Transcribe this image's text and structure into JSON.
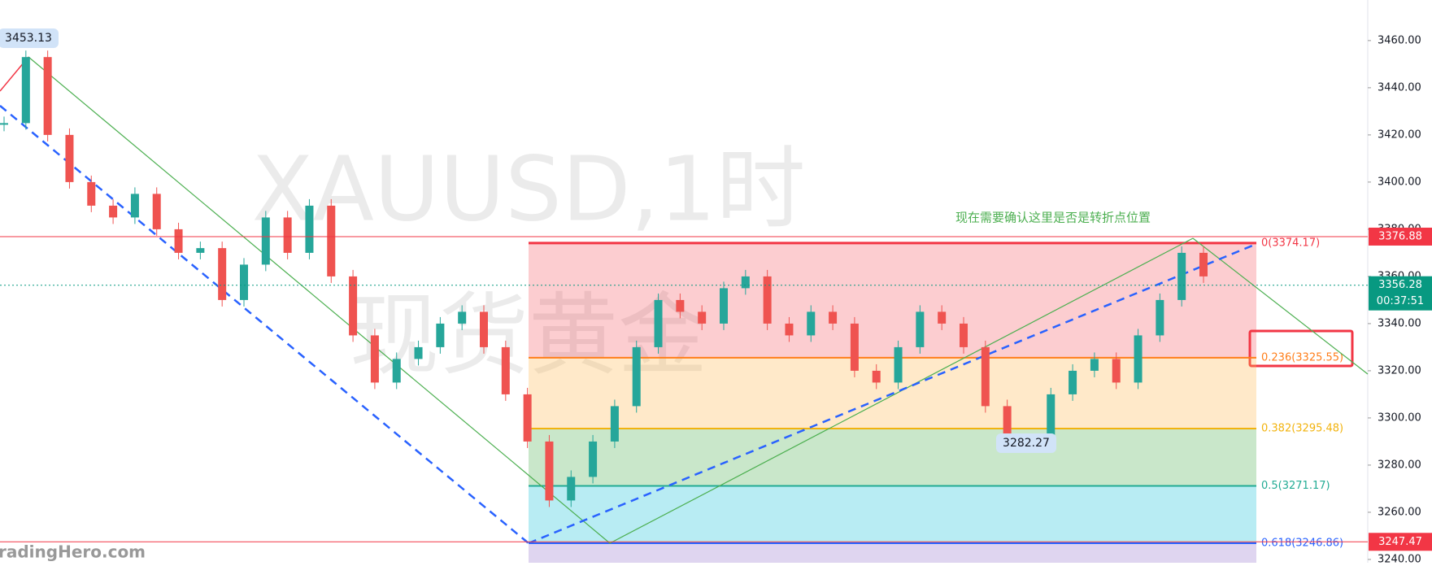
{
  "chart_data": {
    "type": "candlestick",
    "watermark": [
      "XAUUSD,1时",
      "现货黄金"
    ],
    "annotation": "现在需要确认这里是否是转折点位置",
    "logo": "radingHero.com",
    "ylim": [
      3238.6,
      3477.2
    ],
    "yticks": [
      {
        "value": 3240,
        "label": "3240.00"
      },
      {
        "value": 3260,
        "label": "3260.00"
      },
      {
        "value": 3280,
        "label": "3280.00"
      },
      {
        "value": 3300,
        "label": "3300.00"
      },
      {
        "value": 3320,
        "label": "3320.00"
      },
      {
        "value": 3340,
        "label": "3340.00"
      },
      {
        "value": 3360,
        "label": "3360.00"
      },
      {
        "value": 3380,
        "label": "3380.00"
      },
      {
        "value": 3400,
        "label": "3400.00"
      },
      {
        "value": 3420,
        "label": "3420.00"
      },
      {
        "value": 3440,
        "label": "3440.00"
      },
      {
        "value": 3460,
        "label": "3460.00"
      }
    ],
    "series": [
      {
        "name": "XAUUSD",
        "up_color": "#26a69a",
        "down_color": "#ef5350",
        "values": [
          3425,
          3453,
          3420,
          3400,
          3390,
          3385,
          3395,
          3380,
          3370,
          3372,
          3350,
          3365,
          3385,
          3370,
          3390,
          3360,
          3335,
          3315,
          3325,
          3330,
          3340,
          3345,
          3330,
          3310,
          3290,
          3265,
          3275,
          3290,
          3305,
          3330,
          3350,
          3345,
          3340,
          3355,
          3360,
          3340,
          3335,
          3345,
          3340,
          3320,
          3315,
          3330,
          3345,
          3340,
          3330,
          3305,
          3290,
          3288,
          3310,
          3320,
          3325,
          3315,
          3335,
          3350,
          3370,
          3360
        ]
      }
    ],
    "fib_levels": [
      {
        "label": "0(3374.17)",
        "value": 3374.17,
        "color": "#f23645",
        "fill": "rgba(242,54,69,0.25)"
      },
      {
        "label": "0.236(3325.55)",
        "value": 3325.55,
        "color": "#ff7e1a",
        "fill": "rgba(255,183,77,0.3)"
      },
      {
        "label": "0.382(3295.48)",
        "value": 3295.48,
        "color": "#f2b30e",
        "fill": "rgba(76,175,80,0.3)"
      },
      {
        "label": "0.5(3271.17)",
        "value": 3271.17,
        "color": "#22ab94",
        "fill": "rgba(0,188,212,0.28)"
      },
      {
        "label": "0.618(3246.86)",
        "value": 3246.86,
        "color": "#2962ff",
        "fill": "rgba(149,117,205,0.3)"
      }
    ],
    "price_badges": [
      {
        "label": "3376.88",
        "value": 3376.88,
        "color": "#f23645"
      },
      {
        "label": "3356.28",
        "value": 3356.28,
        "color": "#089981",
        "countdown": "00:37:51"
      },
      {
        "label": "3247.47",
        "value": 3247.47,
        "color": "#f23645"
      }
    ],
    "point_labels": [
      {
        "label": "3453.13",
        "value": 3453.13
      },
      {
        "label": "3282.27",
        "value": 3282.27
      }
    ]
  }
}
